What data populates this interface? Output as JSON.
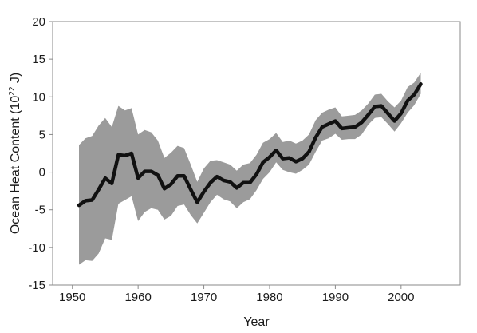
{
  "chart_data": {
    "type": "line",
    "xlabel": "Year",
    "ylabel_main": "Ocean Heat Content (10",
    "ylabel_exp": "22",
    "ylabel_unit": " J)",
    "xlim": [
      1947,
      2009
    ],
    "ylim": [
      -15,
      20
    ],
    "grid": false,
    "x_ticks": [
      1950,
      1960,
      1970,
      1980,
      1990,
      2000
    ],
    "y_ticks": [
      -15,
      -10,
      -5,
      0,
      5,
      10,
      15,
      20
    ],
    "colors": {
      "line": "#111111",
      "band": "#9b9b9b",
      "frame": "#8a8a8a"
    },
    "series": [
      {
        "x": [
          1951,
          1952,
          1953,
          1954,
          1955,
          1956,
          1957,
          1958,
          1959,
          1960,
          1961,
          1962,
          1963,
          1964,
          1965,
          1966,
          1967,
          1968,
          1969,
          1970,
          1971,
          1972,
          1973,
          1974,
          1975,
          1976,
          1977,
          1978,
          1979,
          1980,
          1981,
          1982,
          1983,
          1984,
          1985,
          1986,
          1987,
          1988,
          1989,
          1990,
          1991,
          1992,
          1993,
          1994,
          1995,
          1996,
          1997,
          1998,
          1999,
          2000,
          2001,
          2002,
          2003
        ],
        "values": [
          -4.4,
          -3.8,
          -3.7,
          -2.3,
          -0.8,
          -1.5,
          2.3,
          2.2,
          2.5,
          -0.8,
          0.1,
          0.1,
          -0.4,
          -2.2,
          -1.6,
          -0.5,
          -0.5,
          -2.3,
          -4.0,
          -2.6,
          -1.4,
          -0.6,
          -1.1,
          -1.3,
          -2.1,
          -1.4,
          -1.4,
          -0.3,
          1.3,
          2.0,
          2.9,
          1.8,
          1.9,
          1.4,
          1.8,
          2.7,
          4.6,
          6.0,
          6.4,
          6.8,
          5.8,
          5.9,
          6.0,
          6.6,
          7.6,
          8.7,
          8.8,
          7.8,
          6.8,
          7.8,
          9.5,
          10.3,
          11.7
        ],
        "upper": [
          3.6,
          4.5,
          4.8,
          6.2,
          7.2,
          6.0,
          8.8,
          8.2,
          8.5,
          5.0,
          5.6,
          5.3,
          4.2,
          1.9,
          2.6,
          3.5,
          3.2,
          1.0,
          -1.3,
          0.5,
          1.5,
          1.6,
          1.3,
          1.0,
          0.2,
          1.0,
          1.2,
          2.3,
          3.9,
          4.4,
          5.2,
          4.0,
          4.2,
          3.8,
          4.2,
          5.0,
          6.9,
          7.9,
          8.3,
          8.6,
          7.4,
          7.5,
          7.6,
          8.2,
          9.1,
          10.3,
          10.4,
          9.4,
          8.6,
          9.5,
          11.3,
          11.9,
          13.2
        ],
        "lower": [
          -12.3,
          -11.7,
          -11.8,
          -10.8,
          -8.8,
          -9.0,
          -4.2,
          -3.7,
          -3.2,
          -6.5,
          -5.3,
          -4.8,
          -5.0,
          -6.3,
          -5.8,
          -4.5,
          -4.3,
          -5.7,
          -6.8,
          -5.4,
          -4.0,
          -3.0,
          -3.6,
          -3.9,
          -4.8,
          -4.0,
          -3.6,
          -2.4,
          -0.9,
          0.0,
          1.3,
          0.3,
          0.0,
          -0.2,
          0.3,
          1.0,
          2.7,
          4.2,
          4.5,
          5.1,
          4.3,
          4.4,
          4.4,
          5.0,
          6.3,
          7.2,
          7.3,
          6.4,
          5.4,
          6.5,
          7.9,
          8.9,
          10.4
        ]
      }
    ]
  }
}
